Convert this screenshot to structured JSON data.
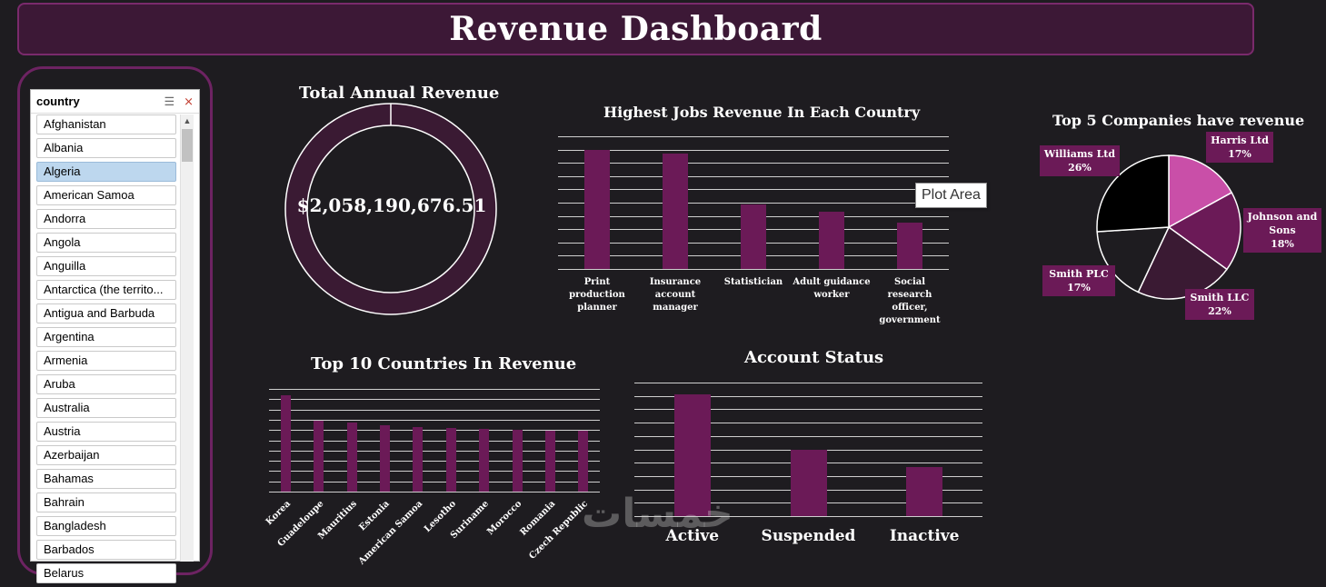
{
  "header": {
    "title": "Revenue Dashboard"
  },
  "slicer": {
    "title": "country",
    "multi_select_icon": "multi-select-icon",
    "clear_filter_icon": "clear-filter-icon",
    "items": [
      {
        "label": "Afghanistan",
        "selected": false
      },
      {
        "label": "Albania",
        "selected": false
      },
      {
        "label": "Algeria",
        "selected": true
      },
      {
        "label": "American Samoa",
        "selected": false
      },
      {
        "label": "Andorra",
        "selected": false
      },
      {
        "label": "Angola",
        "selected": false
      },
      {
        "label": "Anguilla",
        "selected": false
      },
      {
        "label": "Antarctica (the territo...",
        "selected": false
      },
      {
        "label": "Antigua and Barbuda",
        "selected": false
      },
      {
        "label": "Argentina",
        "selected": false
      },
      {
        "label": "Armenia",
        "selected": false
      },
      {
        "label": "Aruba",
        "selected": false
      },
      {
        "label": "Australia",
        "selected": false
      },
      {
        "label": "Austria",
        "selected": false
      },
      {
        "label": "Azerbaijan",
        "selected": false
      },
      {
        "label": "Bahamas",
        "selected": false
      },
      {
        "label": "Bahrain",
        "selected": false
      },
      {
        "label": "Bangladesh",
        "selected": false
      },
      {
        "label": "Barbados",
        "selected": false
      },
      {
        "label": "Belarus",
        "selected": false
      }
    ]
  },
  "tooltip": {
    "text": "Plot Area"
  },
  "watermark": {
    "text": "خمسات"
  },
  "colors": {
    "accent": "#6b1a57",
    "pie_pink": "#c94fa8",
    "pie_purple": "#6b1a57",
    "pie_dark": "#3a1a33",
    "pie_darker": "#1e1c20",
    "pie_black": "#000000"
  },
  "chart_data": [
    {
      "type": "pie",
      "title": "Total Annual Revenue",
      "center_label": "$2,058,190,676.51",
      "values": [
        100
      ]
    },
    {
      "type": "bar",
      "title": "Highest Jobs Revenue In Each Country",
      "categories": [
        "Print production planner",
        "Insurance account manager",
        "Statistician",
        "Adult guidance worker",
        "Social research officer, government"
      ],
      "values": [
        27,
        26,
        14.5,
        13,
        10.5
      ],
      "ylim": [
        0,
        30
      ]
    },
    {
      "type": "pie",
      "title": "Top 5 Companies have revenue",
      "categories": [
        "Harris Ltd",
        "Johnson and Sons",
        "Smith LLC",
        "Smith PLC",
        "Williams Ltd"
      ],
      "values": [
        17,
        18,
        22,
        17,
        26
      ],
      "labels": [
        "17%",
        "18%",
        "22%",
        "17%",
        "26%"
      ]
    },
    {
      "type": "bar",
      "title": "Top 10 Countries In Revenue",
      "categories": [
        "Korea",
        "Guadeloupe",
        "Mauritius",
        "Estonia",
        "American Samoa",
        "Lesotho",
        "Suriname",
        "Morocco",
        "Romania",
        "Czech Republic"
      ],
      "values": [
        108,
        79,
        77,
        74,
        72,
        71,
        70,
        69,
        68,
        68
      ],
      "ylim": [
        0,
        115
      ]
    },
    {
      "type": "bar",
      "title": "Account Status",
      "categories": [
        "Active",
        "Suspended",
        "Inactive"
      ],
      "values": [
        135,
        73,
        54
      ],
      "ylim": [
        0,
        148
      ]
    }
  ]
}
